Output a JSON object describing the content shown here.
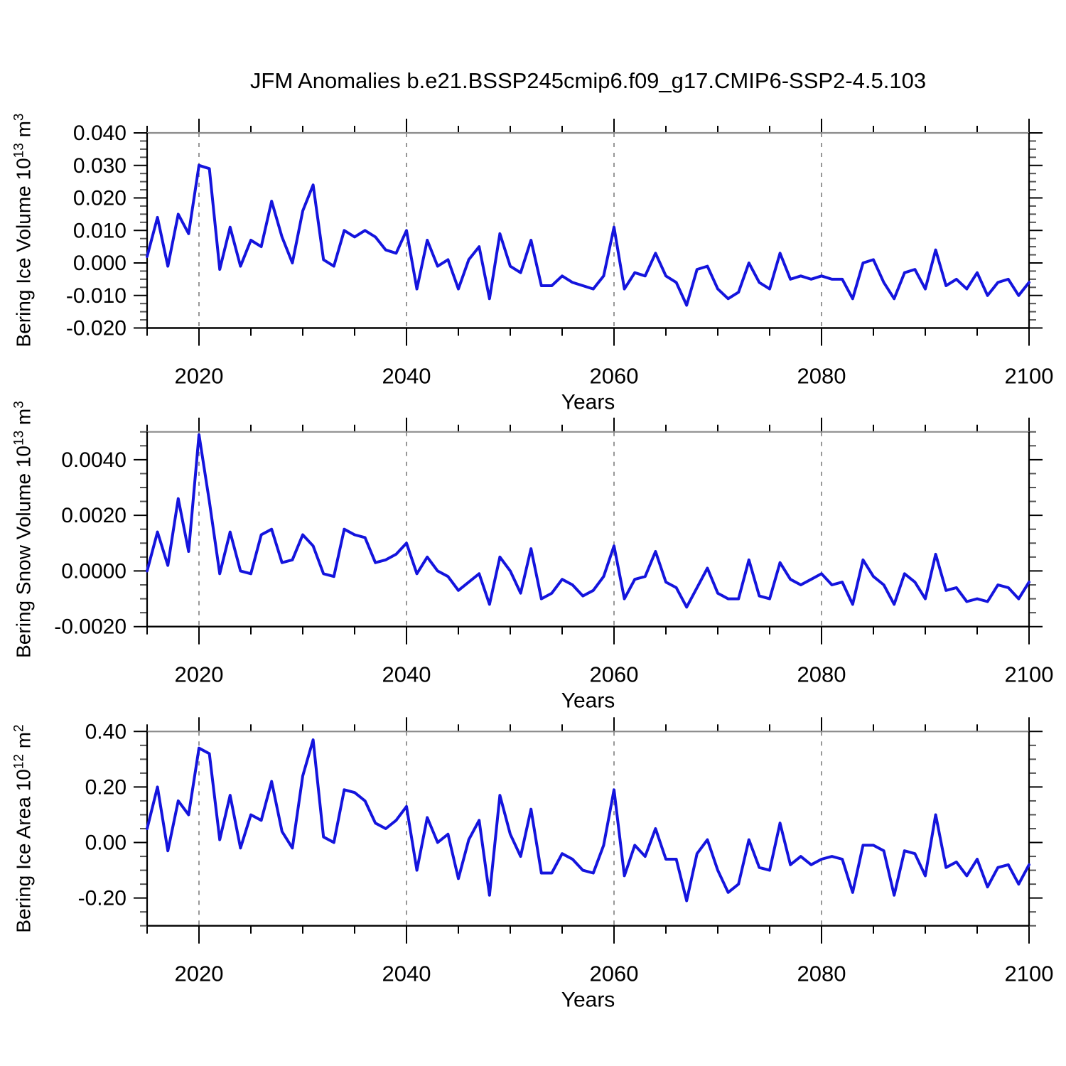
{
  "title": "JFM Anomalies b.e21.BSSP245cmip6.f09_g17.CMIP6-SSP2-4.5.103",
  "colors": {
    "line": "#1414dd",
    "axis": "#000000",
    "frame_top": "#8a8a8a",
    "grid": "#8c8c8c",
    "text": "#000000",
    "background": "#ffffff"
  },
  "chart_data": [
    {
      "type": "line",
      "panel": 1,
      "ylabel": "Bering Ice Volume 10^13 m^3",
      "ylabel_parts": {
        "base": "Bering Ice Volume 10",
        "sup1": "13",
        "mid": " m",
        "sup2": "3"
      },
      "xlabel": "Years",
      "xlim": [
        2015,
        2100
      ],
      "ylim": [
        -0.02,
        0.04
      ],
      "grid": "vertical-dashed",
      "grid_x": [
        2020,
        2040,
        2060,
        2080
      ],
      "xticks": [
        2020,
        2040,
        2060,
        2080,
        2100
      ],
      "xtick_labels": [
        "2020",
        "2040",
        "2060",
        "2080",
        "2100"
      ],
      "x_minor_step": 5,
      "ytick_values": [
        0.04,
        0.03,
        0.02,
        0.01,
        0.0,
        -0.01,
        -0.02
      ],
      "ytick_labels": [
        "0.040",
        "0.030",
        "0.020",
        "0.010",
        "0.000",
        "-0.010",
        "-0.020"
      ],
      "y_minor_step": 0.0025,
      "legend": null,
      "x": [
        2015,
        2016,
        2017,
        2018,
        2019,
        2020,
        2021,
        2022,
        2023,
        2024,
        2025,
        2026,
        2027,
        2028,
        2029,
        2030,
        2031,
        2032,
        2033,
        2034,
        2035,
        2036,
        2037,
        2038,
        2039,
        2040,
        2041,
        2042,
        2043,
        2044,
        2045,
        2046,
        2047,
        2048,
        2049,
        2050,
        2051,
        2052,
        2053,
        2054,
        2055,
        2056,
        2057,
        2058,
        2059,
        2060,
        2061,
        2062,
        2063,
        2064,
        2065,
        2066,
        2067,
        2068,
        2069,
        2070,
        2071,
        2072,
        2073,
        2074,
        2075,
        2076,
        2077,
        2078,
        2079,
        2080,
        2081,
        2082,
        2083,
        2084,
        2085,
        2086,
        2087,
        2088,
        2089,
        2090,
        2091,
        2092,
        2093,
        2094,
        2095,
        2096,
        2097,
        2098,
        2099,
        2100
      ],
      "values": [
        0.002,
        0.014,
        -0.001,
        0.015,
        0.009,
        0.03,
        0.029,
        -0.002,
        0.011,
        -0.001,
        0.007,
        0.005,
        0.019,
        0.008,
        0.0,
        0.016,
        0.024,
        0.001,
        -0.001,
        0.01,
        0.008,
        0.01,
        0.008,
        0.004,
        0.003,
        0.01,
        -0.008,
        0.007,
        -0.001,
        0.001,
        -0.008,
        0.001,
        0.005,
        -0.011,
        0.009,
        -0.001,
        -0.003,
        0.007,
        -0.007,
        -0.007,
        -0.004,
        -0.006,
        -0.007,
        -0.008,
        -0.004,
        0.011,
        -0.008,
        -0.003,
        -0.004,
        0.003,
        -0.004,
        -0.006,
        -0.013,
        -0.002,
        -0.001,
        -0.008,
        -0.011,
        -0.009,
        0.0,
        -0.006,
        -0.008,
        0.003,
        -0.005,
        -0.004,
        -0.005,
        -0.004,
        -0.005,
        -0.005,
        -0.011,
        0.0,
        0.001,
        -0.006,
        -0.011,
        -0.003,
        -0.002,
        -0.008,
        0.004,
        -0.007,
        -0.005,
        -0.008,
        -0.003,
        -0.01,
        -0.006,
        -0.005,
        -0.01,
        -0.006
      ]
    },
    {
      "type": "line",
      "panel": 2,
      "ylabel": "Bering Snow Volume 10^13 m^3",
      "ylabel_parts": {
        "base": "Bering Snow Volume 10",
        "sup1": "13",
        "mid": " m",
        "sup2": "3"
      },
      "xlabel": "Years",
      "xlim": [
        2015,
        2100
      ],
      "ylim": [
        -0.002,
        0.005
      ],
      "grid": "vertical-dashed",
      "grid_x": [
        2020,
        2040,
        2060,
        2080
      ],
      "xticks": [
        2020,
        2040,
        2060,
        2080,
        2100
      ],
      "xtick_labels": [
        "2020",
        "2040",
        "2060",
        "2080",
        "2100"
      ],
      "x_minor_step": 5,
      "ytick_values": [
        0.004,
        0.002,
        0.0,
        -0.002
      ],
      "ytick_labels": [
        "0.0040",
        "0.0020",
        "0.0000",
        "-0.0020"
      ],
      "y_minor_step": 0.0005,
      "legend": null,
      "x": [
        2015,
        2016,
        2017,
        2018,
        2019,
        2020,
        2021,
        2022,
        2023,
        2024,
        2025,
        2026,
        2027,
        2028,
        2029,
        2030,
        2031,
        2032,
        2033,
        2034,
        2035,
        2036,
        2037,
        2038,
        2039,
        2040,
        2041,
        2042,
        2043,
        2044,
        2045,
        2046,
        2047,
        2048,
        2049,
        2050,
        2051,
        2052,
        2053,
        2054,
        2055,
        2056,
        2057,
        2058,
        2059,
        2060,
        2061,
        2062,
        2063,
        2064,
        2065,
        2066,
        2067,
        2068,
        2069,
        2070,
        2071,
        2072,
        2073,
        2074,
        2075,
        2076,
        2077,
        2078,
        2079,
        2080,
        2081,
        2082,
        2083,
        2084,
        2085,
        2086,
        2087,
        2088,
        2089,
        2090,
        2091,
        2092,
        2093,
        2094,
        2095,
        2096,
        2097,
        2098,
        2099,
        2100
      ],
      "values": [
        0.0,
        0.0014,
        0.0002,
        0.0026,
        0.0007,
        0.0049,
        0.0025,
        -0.0001,
        0.0014,
        0.0,
        -0.0001,
        0.0013,
        0.0015,
        0.0003,
        0.0004,
        0.0013,
        0.0009,
        -0.0001,
        -0.0002,
        0.0015,
        0.0013,
        0.0012,
        0.0003,
        0.0004,
        0.0006,
        0.001,
        -0.0001,
        0.0005,
        0.0,
        -0.0002,
        -0.0007,
        -0.0004,
        -0.0001,
        -0.0012,
        0.0005,
        0.0,
        -0.0008,
        0.0008,
        -0.001,
        -0.0008,
        -0.0003,
        -0.0005,
        -0.0009,
        -0.0007,
        -0.0002,
        0.0009,
        -0.001,
        -0.0003,
        -0.0002,
        0.0007,
        -0.0004,
        -0.0006,
        -0.0013,
        -0.0006,
        0.0001,
        -0.0008,
        -0.001,
        -0.001,
        0.0004,
        -0.0009,
        -0.001,
        0.0003,
        -0.0003,
        -0.0005,
        -0.0003,
        -0.0001,
        -0.0005,
        -0.0004,
        -0.0012,
        0.0004,
        -0.0002,
        -0.0005,
        -0.0012,
        -0.0001,
        -0.0004,
        -0.001,
        0.0006,
        -0.0007,
        -0.0006,
        -0.0011,
        -0.001,
        -0.0011,
        -0.0005,
        -0.0006,
        -0.001,
        -0.0004
      ]
    },
    {
      "type": "line",
      "panel": 3,
      "ylabel": "Bering Ice Area 10^12 m^2",
      "ylabel_parts": {
        "base": "Bering Ice Area 10",
        "sup1": "12",
        "mid": " m",
        "sup2": "2"
      },
      "xlabel": "Years",
      "xlim": [
        2015,
        2100
      ],
      "ylim": [
        -0.3,
        0.4
      ],
      "grid": "vertical-dashed",
      "grid_x": [
        2020,
        2040,
        2060,
        2080
      ],
      "xticks": [
        2020,
        2040,
        2060,
        2080,
        2100
      ],
      "xtick_labels": [
        "2020",
        "2040",
        "2060",
        "2080",
        "2100"
      ],
      "x_minor_step": 5,
      "ytick_values": [
        0.4,
        0.2,
        0.0,
        -0.2
      ],
      "ytick_labels": [
        "0.40",
        "0.20",
        "0.00",
        "-0.20"
      ],
      "y_minor_step": 0.05,
      "legend": null,
      "x": [
        2015,
        2016,
        2017,
        2018,
        2019,
        2020,
        2021,
        2022,
        2023,
        2024,
        2025,
        2026,
        2027,
        2028,
        2029,
        2030,
        2031,
        2032,
        2033,
        2034,
        2035,
        2036,
        2037,
        2038,
        2039,
        2040,
        2041,
        2042,
        2043,
        2044,
        2045,
        2046,
        2047,
        2048,
        2049,
        2050,
        2051,
        2052,
        2053,
        2054,
        2055,
        2056,
        2057,
        2058,
        2059,
        2060,
        2061,
        2062,
        2063,
        2064,
        2065,
        2066,
        2067,
        2068,
        2069,
        2070,
        2071,
        2072,
        2073,
        2074,
        2075,
        2076,
        2077,
        2078,
        2079,
        2080,
        2081,
        2082,
        2083,
        2084,
        2085,
        2086,
        2087,
        2088,
        2089,
        2090,
        2091,
        2092,
        2093,
        2094,
        2095,
        2096,
        2097,
        2098,
        2099,
        2100
      ],
      "values": [
        0.05,
        0.2,
        -0.03,
        0.15,
        0.1,
        0.34,
        0.32,
        0.01,
        0.17,
        -0.02,
        0.1,
        0.08,
        0.22,
        0.04,
        -0.02,
        0.24,
        0.37,
        0.02,
        0.0,
        0.19,
        0.18,
        0.15,
        0.07,
        0.05,
        0.08,
        0.13,
        -0.1,
        0.09,
        0.0,
        0.03,
        -0.13,
        0.01,
        0.08,
        -0.19,
        0.17,
        0.03,
        -0.05,
        0.12,
        -0.11,
        -0.11,
        -0.04,
        -0.06,
        -0.1,
        -0.11,
        -0.01,
        0.19,
        -0.12,
        -0.01,
        -0.05,
        0.05,
        -0.06,
        -0.06,
        -0.21,
        -0.04,
        0.01,
        -0.1,
        -0.18,
        -0.15,
        0.01,
        -0.09,
        -0.1,
        0.07,
        -0.08,
        -0.05,
        -0.08,
        -0.06,
        -0.05,
        -0.06,
        -0.18,
        -0.01,
        -0.01,
        -0.03,
        -0.19,
        -0.03,
        -0.04,
        -0.12,
        0.1,
        -0.09,
        -0.07,
        -0.12,
        -0.06,
        -0.16,
        -0.09,
        -0.08,
        -0.15,
        -0.08
      ]
    }
  ]
}
